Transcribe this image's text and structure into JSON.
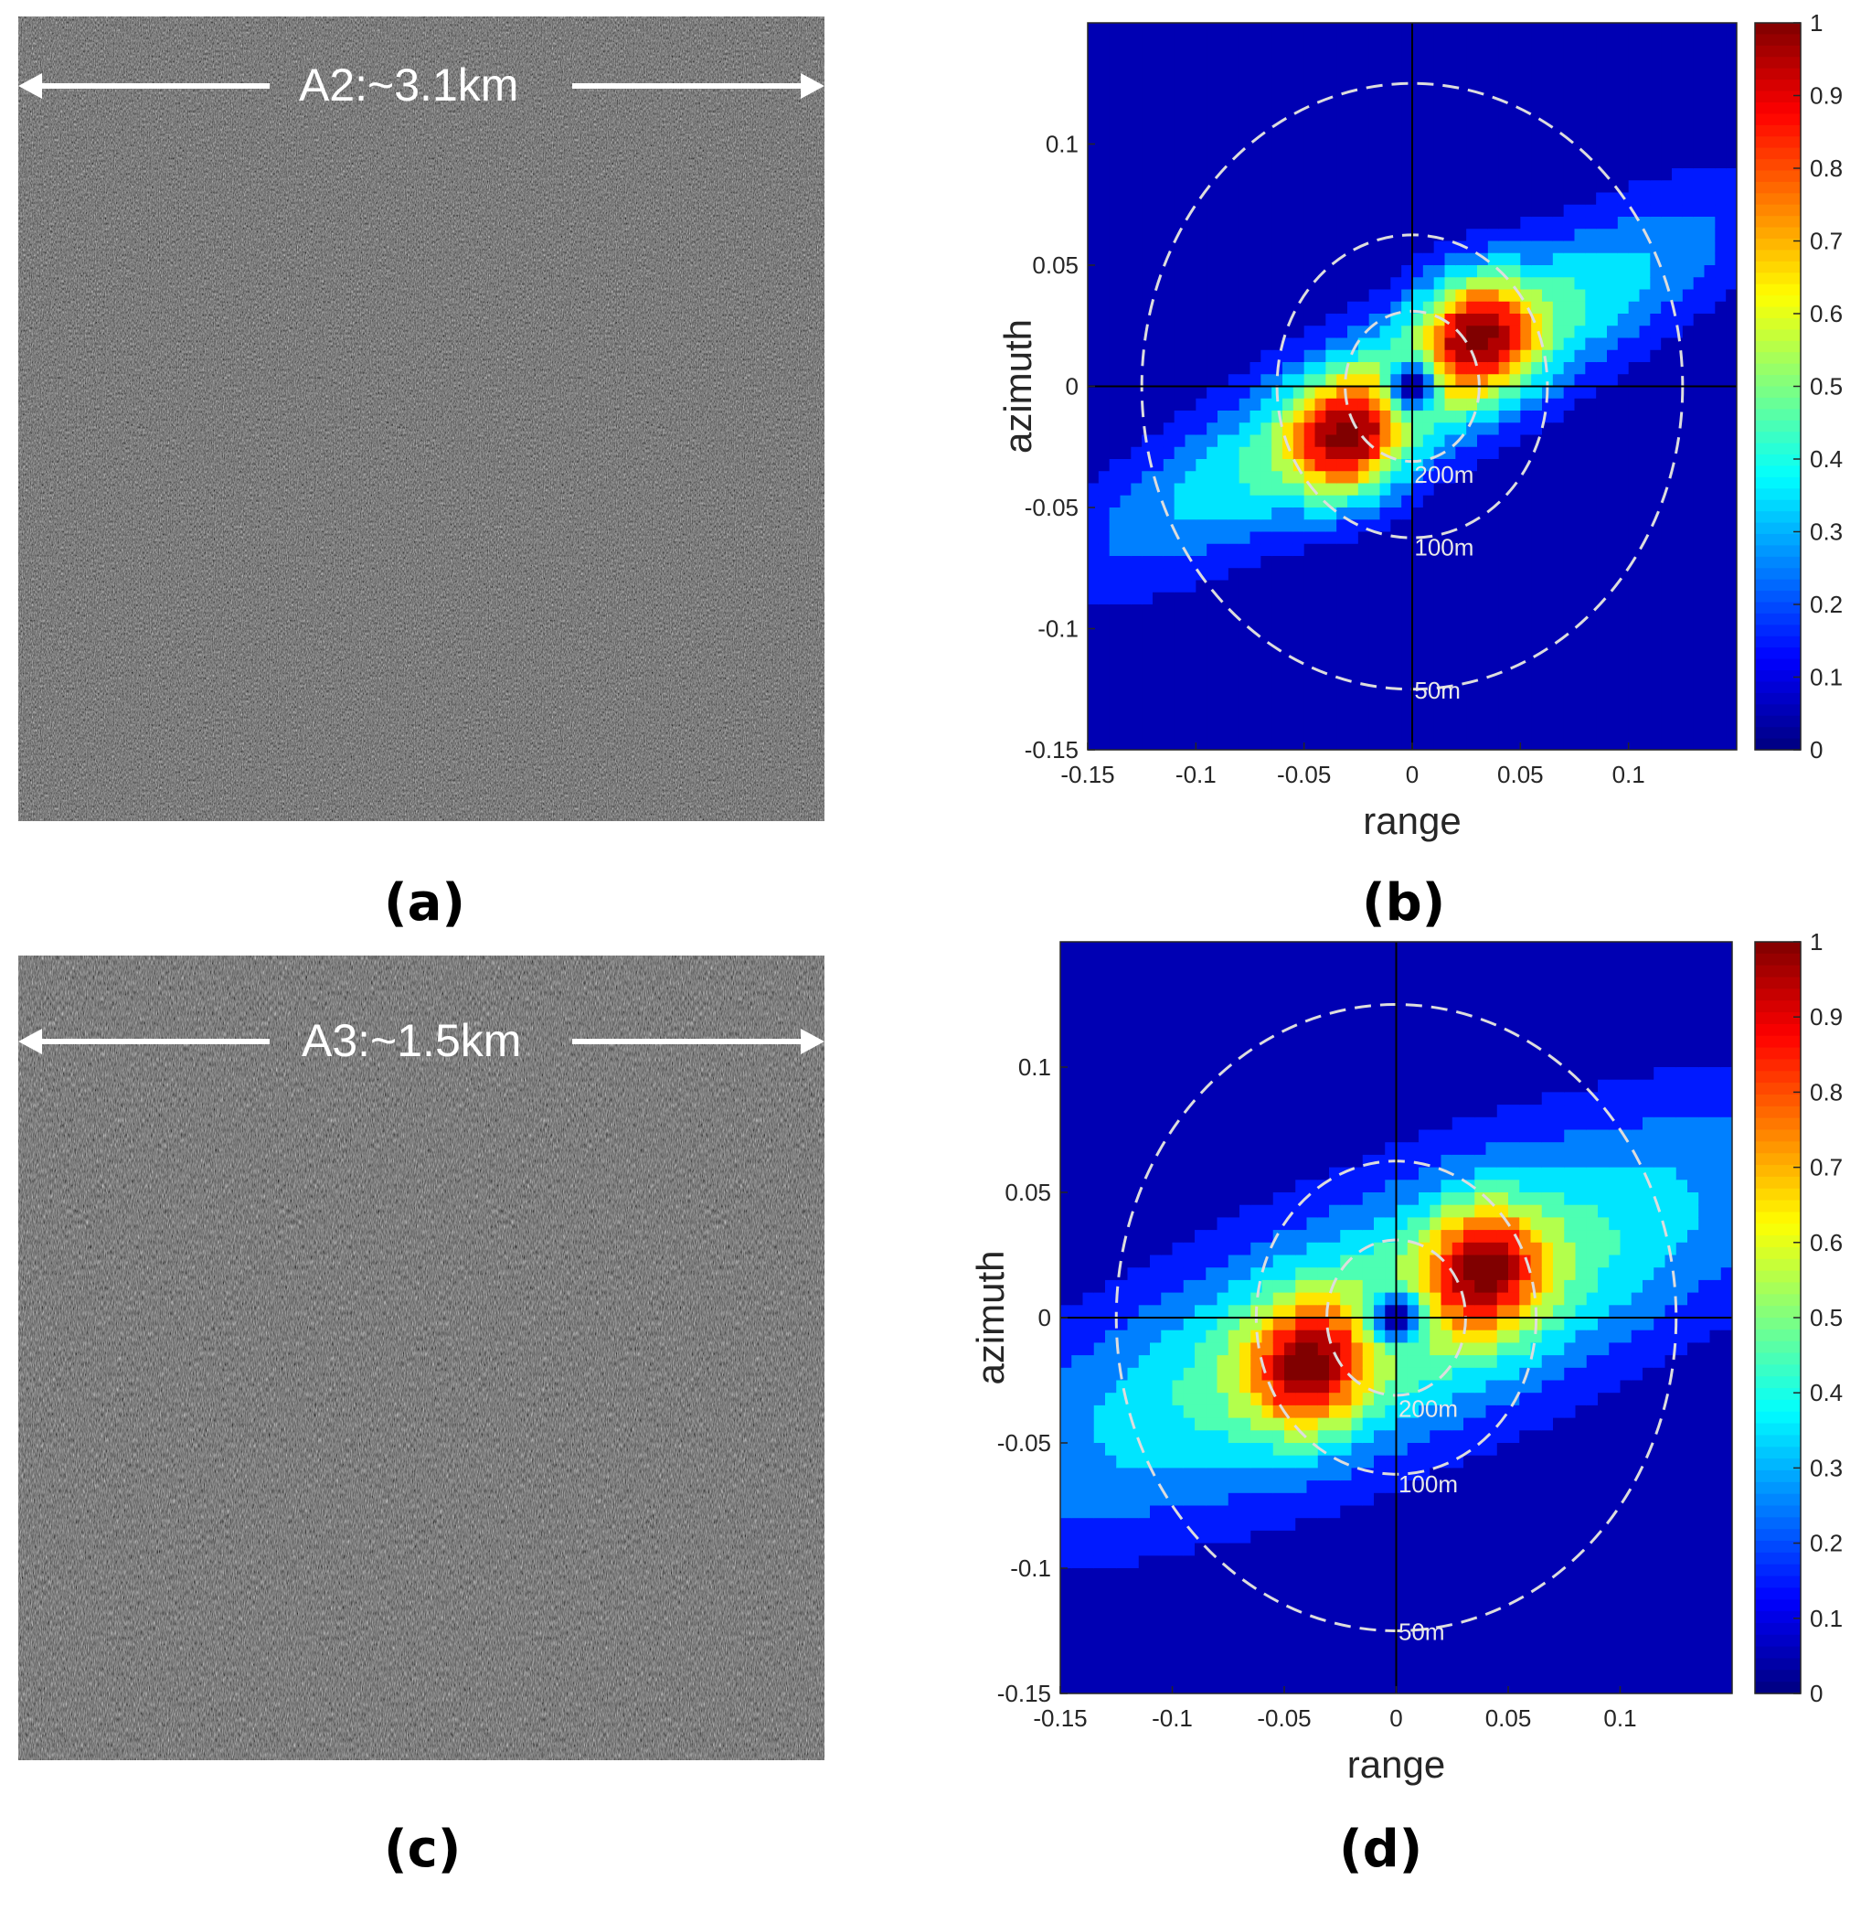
{
  "panels": {
    "a": {
      "caption": "(a)",
      "scale_label": "A2:~3.1km"
    },
    "b": {
      "caption": "(b)"
    },
    "c": {
      "caption": "(c)",
      "scale_label": "A3:~1.5km"
    },
    "d": {
      "caption": "(d)"
    }
  },
  "colors": {
    "sar_background": "#5a5a5a",
    "jet_low": "#00008f",
    "jet_high": "#800000",
    "ring_color": "#dddddd"
  },
  "chart_data": [
    {
      "panel": "b",
      "type": "heatmap",
      "subtype": "filled-contour",
      "xlabel": "range",
      "ylabel": "azimuth",
      "xlim": [
        -0.15,
        0.15
      ],
      "ylim": [
        -0.15,
        0.15
      ],
      "x_ticks": [
        "-0.15",
        "-0.1",
        "-0.05",
        "0",
        "0.05",
        "0.1"
      ],
      "y_ticks": [
        "0.1",
        "0.05",
        "0",
        "-0.05",
        "-0.1",
        "-0.15"
      ],
      "colorbar_ticks": [
        "1",
        "0.9",
        "0.8",
        "0.7",
        "0.6",
        "0.5",
        "0.4",
        "0.3",
        "0.2",
        "0.1",
        "0"
      ],
      "colorbar_range": [
        0,
        1
      ],
      "ring_labels": [
        "200m",
        "100m",
        "50m"
      ],
      "peaks": [
        {
          "x": 0.03,
          "y": 0.023,
          "value": 1.0
        },
        {
          "x": -0.03,
          "y": -0.023,
          "value": 1.0
        }
      ],
      "ridge": {
        "angle_deg": 25,
        "sigma_range": 0.11,
        "sigma_azimuth": 0.022
      },
      "center_hole": {
        "x": 0,
        "y": 0
      }
    },
    {
      "panel": "d",
      "type": "heatmap",
      "subtype": "filled-contour",
      "xlabel": "range",
      "ylabel": "azimuth",
      "xlim": [
        -0.15,
        0.15
      ],
      "ylim": [
        -0.15,
        0.15
      ],
      "x_ticks": [
        "-0.15",
        "-0.1",
        "-0.05",
        "0",
        "0.05",
        "0.1"
      ],
      "y_ticks": [
        "0.1",
        "0.05",
        "0",
        "-0.05",
        "-0.1",
        "-0.15"
      ],
      "colorbar_ticks": [
        "1",
        "0.9",
        "0.8",
        "0.7",
        "0.6",
        "0.5",
        "0.4",
        "0.3",
        "0.2",
        "0.1",
        "0"
      ],
      "colorbar_range": [
        0,
        1
      ],
      "ring_labels": [
        "200m",
        "100m",
        "50m"
      ],
      "peaks": [
        {
          "x": 0.04,
          "y": 0.02,
          "value": 1.0
        },
        {
          "x": -0.04,
          "y": -0.02,
          "value": 1.0
        }
      ],
      "ridge": {
        "angle_deg": 20,
        "sigma_range": 0.13,
        "sigma_azimuth": 0.035
      },
      "center_hole": {
        "x": 0,
        "y": 0
      }
    }
  ]
}
